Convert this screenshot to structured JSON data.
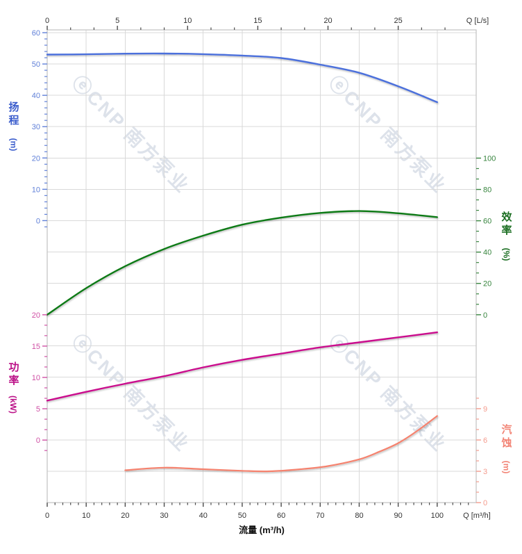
{
  "watermark": {
    "logo_glyph": "ⓔ",
    "text": "CNP 南方泵业",
    "color": "rgba(173,186,206,0.42)"
  },
  "chart_data": {
    "type": "line",
    "description": "Pump performance curves: head, efficiency, power and NPSH versus flow rate",
    "grid": true,
    "x_axis_bottom": {
      "title": "流量 (m³/h)",
      "unit_label": "Q [m³/h]",
      "range": [
        0,
        110
      ],
      "ticks": [
        0,
        10,
        20,
        30,
        40,
        50,
        60,
        70,
        80,
        90,
        100
      ],
      "minor": {
        "step": 2,
        "from": 0,
        "to": 108
      },
      "tick_color": "#4a4a4a",
      "label_color": "#333333"
    },
    "x_axis_top": {
      "unit_label": "Q [L/s]",
      "range": [
        0,
        30.5
      ],
      "ticks": [
        0,
        5,
        10,
        15,
        20,
        25
      ],
      "minor": {
        "step": 1.6667,
        "from": 0,
        "to": 28.34
      },
      "tick_color": "#4a4a4a",
      "label_color": "#333333"
    },
    "y_axes": [
      {
        "id": "head",
        "side": "left",
        "title": "扬程",
        "unit": "(m)",
        "range": [
          0,
          60
        ],
        "ticks": [
          0,
          10,
          20,
          30,
          40,
          50,
          60
        ],
        "minor": {
          "step": 2,
          "from": -2,
          "to": 60
        },
        "tick_color": "#6080d8",
        "label_color": "#6080d8",
        "title_color": "#3a5ccc"
      },
      {
        "id": "eff",
        "side": "right",
        "title": "效率",
        "unit": "(%)",
        "range": [
          0,
          100
        ],
        "ticks": [
          0,
          20,
          40,
          60,
          80,
          100
        ],
        "minor": {
          "step": 6.6667,
          "from": 0,
          "to": 100
        },
        "tick_color": "#38853f",
        "label_color": "#38853f",
        "title_color": "#1b6e22"
      },
      {
        "id": "power",
        "side": "left",
        "title": "功率",
        "unit": "(kW)",
        "range": [
          0,
          20
        ],
        "ticks": [
          0,
          5,
          10,
          15,
          20
        ],
        "minor": {
          "step": 1.6667,
          "from": -1.6667,
          "to": 21.667
        },
        "tick_color": "#cf4fa4",
        "label_color": "#cf4fa4",
        "title_color": "#bb1087"
      },
      {
        "id": "npsh",
        "side": "right",
        "title": "汽蚀",
        "unit": "(m)",
        "range": [
          0,
          9
        ],
        "ticks": [
          0,
          3,
          6,
          9
        ],
        "minor": {
          "step": 1,
          "from": 0,
          "to": 10
        },
        "tick_color": "#f49b8d",
        "label_color": "#f49b8d",
        "title_color": "#f28374"
      }
    ],
    "series": [
      {
        "id": "head",
        "name": "扬程",
        "axis": "head",
        "color": "#4b6fdc",
        "width": 2.4,
        "points": [
          [
            0,
            53.0
          ],
          [
            10,
            53.1
          ],
          [
            20,
            53.3
          ],
          [
            30,
            53.35
          ],
          [
            40,
            53.15
          ],
          [
            50,
            52.7
          ],
          [
            60,
            51.9
          ],
          [
            70,
            49.8
          ],
          [
            80,
            47.2
          ],
          [
            90,
            42.9
          ],
          [
            100,
            37.8
          ]
        ]
      },
      {
        "id": "efficiency",
        "name": "效率",
        "axis": "eff",
        "color": "#0b7a13",
        "width": 2.4,
        "points": [
          [
            0,
            0
          ],
          [
            10,
            17
          ],
          [
            20,
            31
          ],
          [
            30,
            42
          ],
          [
            40,
            50.5
          ],
          [
            50,
            57.5
          ],
          [
            60,
            62
          ],
          [
            70,
            65
          ],
          [
            80,
            66.2
          ],
          [
            90,
            64.8
          ],
          [
            100,
            62.3
          ]
        ]
      },
      {
        "id": "power",
        "name": "功率",
        "axis": "power",
        "color": "#ca0f8d",
        "width": 2.4,
        "points": [
          [
            0,
            6.3
          ],
          [
            10,
            7.7
          ],
          [
            20,
            9.0
          ],
          [
            30,
            10.2
          ],
          [
            40,
            11.6
          ],
          [
            50,
            12.8
          ],
          [
            60,
            13.8
          ],
          [
            70,
            14.8
          ],
          [
            80,
            15.6
          ],
          [
            90,
            16.4
          ],
          [
            100,
            17.2
          ]
        ]
      },
      {
        "id": "npsh",
        "name": "汽蚀",
        "axis": "npsh",
        "color": "#f5826e",
        "width": 2.2,
        "points": [
          [
            20,
            3.1
          ],
          [
            30,
            3.35
          ],
          [
            40,
            3.2
          ],
          [
            50,
            3.05
          ],
          [
            57,
            3.0
          ],
          [
            65,
            3.2
          ],
          [
            72,
            3.5
          ],
          [
            80,
            4.15
          ],
          [
            85,
            4.85
          ],
          [
            90,
            5.7
          ],
          [
            95,
            6.9
          ],
          [
            100,
            8.3
          ]
        ]
      }
    ]
  }
}
